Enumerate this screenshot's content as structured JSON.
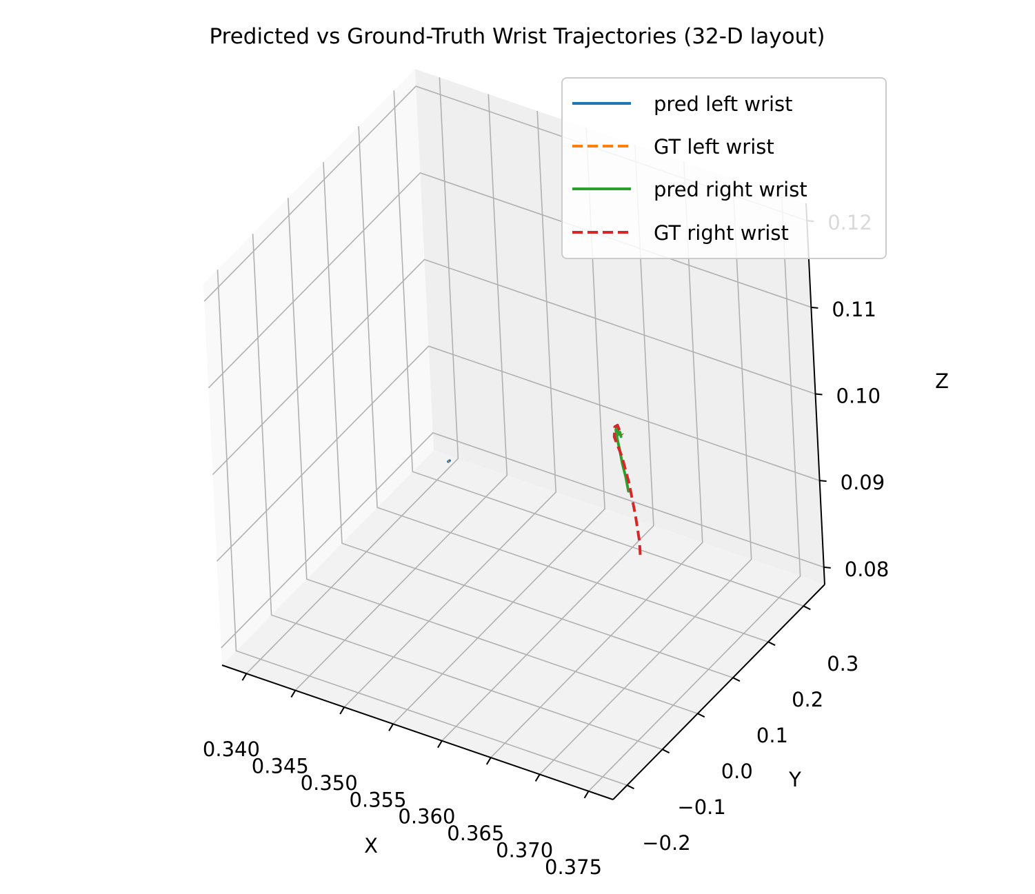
{
  "chart_data": {
    "type": "line",
    "projection": "3d",
    "title": "Predicted vs Ground-Truth Wrist Trajectories (32-D layout)",
    "xlabel": "X",
    "ylabel": "Y",
    "zlabel": "Z",
    "xlim": [
      0.3375,
      0.3775
    ],
    "ylim": [
      -0.24,
      0.36
    ],
    "zlim": [
      0.078,
      0.122
    ],
    "xticks": [
      "0.340",
      "0.345",
      "0.350",
      "0.355",
      "0.360",
      "0.365",
      "0.370",
      "0.375"
    ],
    "yticks": [
      "−0.2",
      "−0.1",
      "0.0",
      "0.1",
      "0.2",
      "0.3"
    ],
    "zticks": [
      "0.08",
      "0.09",
      "0.10",
      "0.11",
      "0.12"
    ],
    "legend_position": "top-right",
    "grid": true,
    "series": [
      {
        "name": "pred left wrist",
        "color": "#1f77b4",
        "style": "solid",
        "points": [
          [
            0.3405,
            0.32,
            0.0795
          ],
          [
            0.3406,
            0.321,
            0.0796
          ]
        ]
      },
      {
        "name": "GT left wrist",
        "color": "#ff7f0e",
        "style": "dashed",
        "points": [
          [
            0.3405,
            0.32,
            0.0795
          ],
          [
            0.34055,
            0.3205,
            0.07955
          ]
        ]
      },
      {
        "name": "pred right wrist",
        "color": "#2ca02c",
        "style": "solid",
        "points": [
          [
            0.3695,
            0.05,
            0.0985
          ],
          [
            0.3693,
            0.05,
            0.1
          ],
          [
            0.369,
            0.05,
            0.1015
          ],
          [
            0.3688,
            0.05,
            0.103
          ],
          [
            0.3686,
            0.05,
            0.1042
          ],
          [
            0.3685,
            0.05,
            0.1052
          ],
          [
            0.3687,
            0.05,
            0.1058
          ],
          [
            0.3687,
            0.05,
            0.1047
          ],
          [
            0.3689,
            0.05,
            0.1051
          ],
          [
            0.369,
            0.05,
            0.1046
          ]
        ]
      },
      {
        "name": "GT right wrist",
        "color": "#d62728",
        "style": "dashed",
        "points": [
          [
            0.3704,
            0.05,
            0.0915
          ],
          [
            0.3704,
            0.05,
            0.093
          ],
          [
            0.3701,
            0.05,
            0.096
          ],
          [
            0.3696,
            0.05,
            0.0995
          ],
          [
            0.369,
            0.05,
            0.1023
          ],
          [
            0.3683,
            0.05,
            0.1043
          ],
          [
            0.3684,
            0.05,
            0.1055
          ],
          [
            0.3687,
            0.05,
            0.1058
          ],
          [
            0.3689,
            0.05,
            0.1052
          ],
          [
            0.3692,
            0.05,
            0.1049
          ]
        ]
      }
    ]
  }
}
